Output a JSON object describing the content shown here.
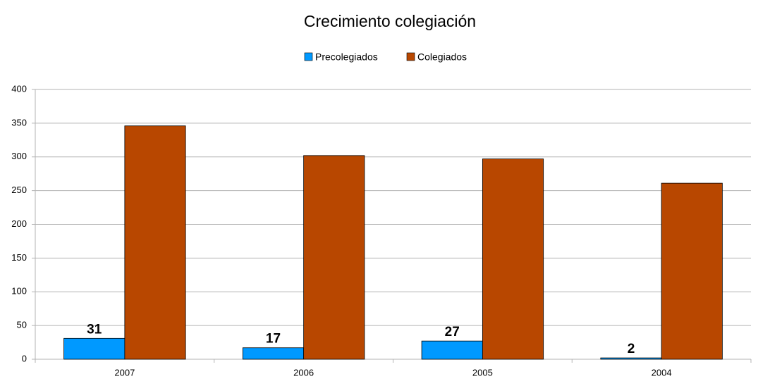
{
  "chart_data": {
    "type": "bar",
    "title": "Crecimiento colegiación",
    "categories": [
      "2007",
      "2006",
      "2005",
      "2004"
    ],
    "series": [
      {
        "name": "Precolegiados",
        "color": "#0099ff",
        "values": [
          31,
          17,
          27,
          2
        ],
        "show_labels": true
      },
      {
        "name": "Colegiados",
        "color": "#b84700",
        "values": [
          346,
          302,
          297,
          261
        ],
        "show_labels": false
      }
    ],
    "ylim": [
      0,
      400
    ],
    "yticks": [
      0,
      50,
      100,
      150,
      200,
      250,
      300,
      350,
      400
    ],
    "grid": true,
    "legend": "top"
  }
}
